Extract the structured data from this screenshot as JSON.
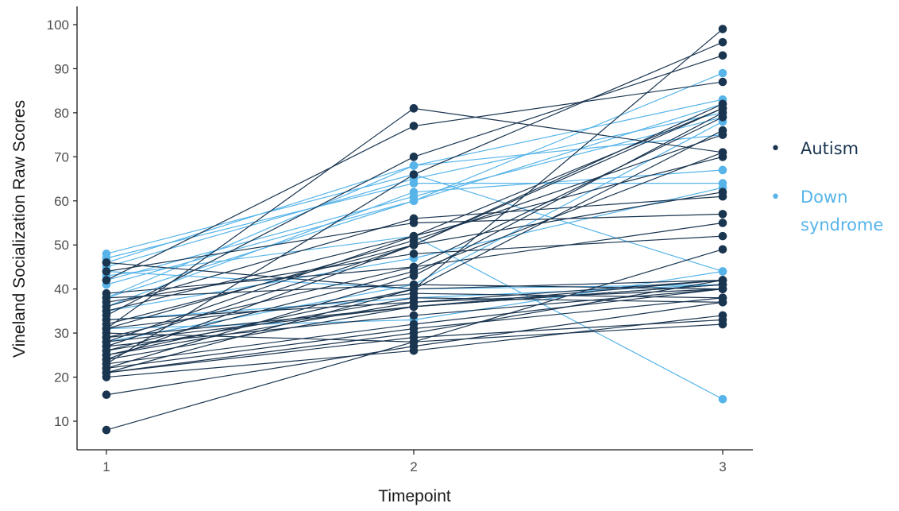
{
  "chart_data": {
    "type": "line",
    "xlabel": "Timepoint",
    "ylabel": "Vineland Socialization Raw Scores",
    "x": [
      1,
      2,
      3
    ],
    "x_ticks": [
      "1",
      "2",
      "3"
    ],
    "y_ticks": [
      "10",
      "20",
      "30",
      "40",
      "50",
      "60",
      "70",
      "80",
      "90",
      "100"
    ],
    "ylim": [
      5,
      103
    ],
    "grid": false,
    "legend_position": "right",
    "colors": {
      "Autism": "#1a3550",
      "Down syndrome": "#56b4e9"
    },
    "series": [
      {
        "name": "Autism",
        "values": [
          8,
          28,
          49
        ]
      },
      {
        "name": "Autism",
        "values": [
          16,
          27,
          37
        ]
      },
      {
        "name": "Autism",
        "values": [
          20,
          26,
          34
        ]
      },
      {
        "name": "Autism",
        "values": [
          21,
          29,
          33
        ]
      },
      {
        "name": "Autism",
        "values": [
          21,
          40,
          99
        ]
      },
      {
        "name": "Autism",
        "values": [
          21,
          30,
          42
        ]
      },
      {
        "name": "Autism",
        "values": [
          22,
          43,
          80
        ]
      },
      {
        "name": "Autism",
        "values": [
          22,
          31,
          38
        ]
      },
      {
        "name": "Autism",
        "values": [
          23,
          32,
          40
        ]
      },
      {
        "name": "Autism",
        "values": [
          23,
          66,
          96
        ]
      },
      {
        "name": "Autism",
        "values": [
          24,
          36,
          41
        ]
      },
      {
        "name": "Autism",
        "values": [
          24,
          50,
          82
        ]
      },
      {
        "name": "Autism",
        "values": [
          25,
          37,
          40
        ]
      },
      {
        "name": "Autism",
        "values": [
          25,
          40,
          76
        ]
      },
      {
        "name": "Autism",
        "values": [
          26,
          44,
          71
        ]
      },
      {
        "name": "Autism",
        "values": [
          26,
          38,
          37
        ]
      },
      {
        "name": "Autism",
        "values": [
          27,
          50,
          81
        ]
      },
      {
        "name": "Autism",
        "values": [
          27,
          34,
          40
        ]
      },
      {
        "name": "Autism",
        "values": [
          28,
          52,
          70
        ]
      },
      {
        "name": "Autism",
        "values": [
          28,
          36,
          41
        ]
      },
      {
        "name": "Autism",
        "values": [
          29,
          45,
          79
        ]
      },
      {
        "name": "Autism",
        "values": [
          29,
          36,
          42
        ]
      },
      {
        "name": "Autism",
        "values": [
          30,
          28,
          32
        ]
      },
      {
        "name": "Autism",
        "values": [
          31,
          39,
          38
        ]
      },
      {
        "name": "Autism",
        "values": [
          31,
          51,
          75
        ]
      },
      {
        "name": "Autism",
        "values": [
          32,
          50,
          62
        ]
      },
      {
        "name": "Autism",
        "values": [
          33,
          37,
          42
        ]
      },
      {
        "name": "Autism",
        "values": [
          34,
          70,
          93
        ]
      },
      {
        "name": "Autism",
        "values": [
          35,
          52,
          81
        ]
      },
      {
        "name": "Autism",
        "values": [
          36,
          56,
          61
        ]
      },
      {
        "name": "Autism",
        "values": [
          37,
          48,
          52
        ]
      },
      {
        "name": "Autism",
        "values": [
          38,
          41,
          40
        ]
      },
      {
        "name": "Autism",
        "values": [
          39,
          45,
          55
        ]
      },
      {
        "name": "Autism",
        "values": [
          42,
          77,
          87
        ]
      },
      {
        "name": "Autism",
        "values": [
          44,
          55,
          57
        ]
      },
      {
        "name": "Autism",
        "values": [
          46,
          40,
          42
        ]
      },
      {
        "name": "Autism",
        "values": [
          31,
          81,
          71
        ]
      },
      {
        "name": "Down syndrome",
        "values": [
          28,
          41,
          78
        ]
      },
      {
        "name": "Down syndrome",
        "values": [
          31,
          33,
          44
        ]
      },
      {
        "name": "Down syndrome",
        "values": [
          33,
          38,
          41
        ]
      },
      {
        "name": "Down syndrome",
        "values": [
          35,
          47,
          63
        ]
      },
      {
        "name": "Down syndrome",
        "values": [
          36,
          62,
          67
        ]
      },
      {
        "name": "Down syndrome",
        "values": [
          38,
          60,
          89
        ]
      },
      {
        "name": "Down syndrome",
        "values": [
          38,
          68,
          75
        ]
      },
      {
        "name": "Down syndrome",
        "values": [
          41,
          60,
          82
        ]
      },
      {
        "name": "Down syndrome",
        "values": [
          42,
          61,
          79
        ]
      },
      {
        "name": "Down syndrome",
        "values": [
          44,
          40,
          41
        ]
      },
      {
        "name": "Down syndrome",
        "values": [
          45,
          65,
          80
        ]
      },
      {
        "name": "Down syndrome",
        "values": [
          46,
          68,
          83
        ]
      },
      {
        "name": "Down syndrome",
        "values": [
          47,
          64,
          64
        ]
      },
      {
        "name": "Down syndrome",
        "values": [
          48,
          66,
          44
        ]
      },
      {
        "name": "Down syndrome",
        "values": [
          43,
          52,
          15
        ]
      }
    ]
  },
  "legend": {
    "items": [
      {
        "bullet": "•",
        "label": "Autism",
        "color": "#1a3550"
      },
      {
        "bullet": "•",
        "label": "Down syndrome",
        "color": "#56b4e9"
      }
    ]
  }
}
